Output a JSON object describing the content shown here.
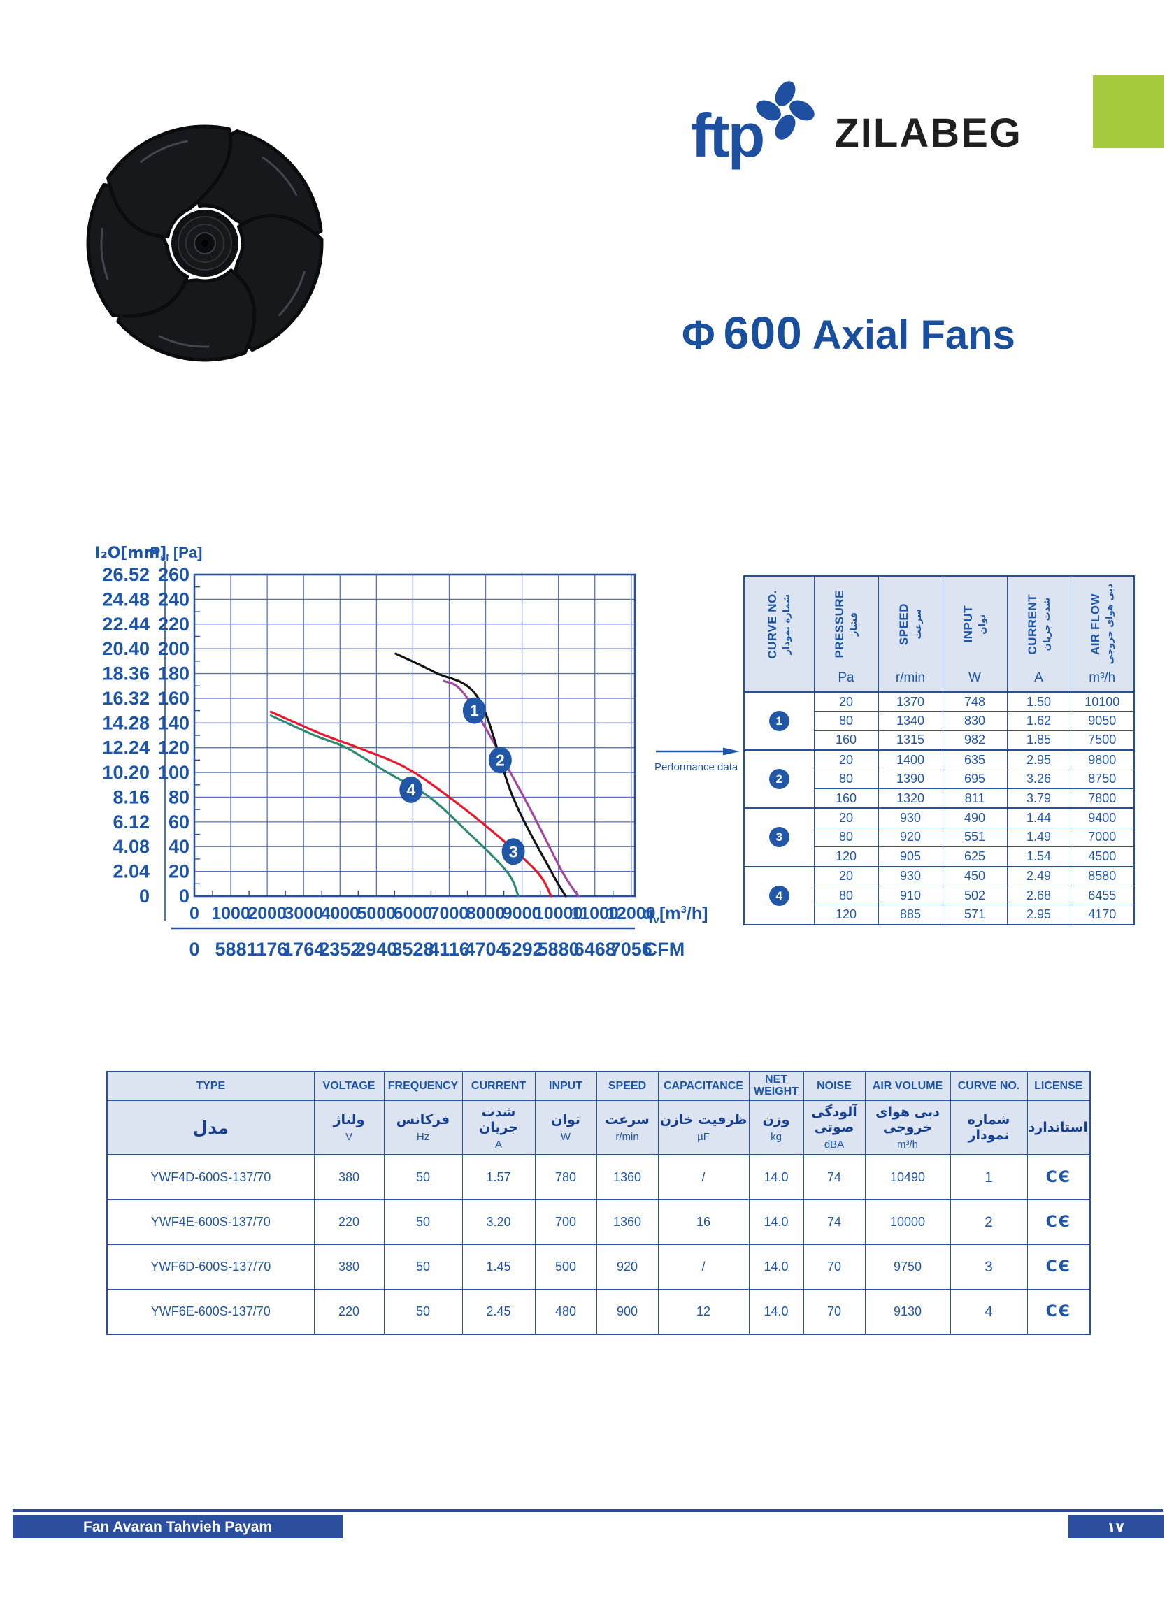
{
  "logo": {
    "ftp": "ftp",
    "brand": "ZILABEG",
    "accent_green": "#a6ca3d",
    "brand_blue": "#1e4fa1"
  },
  "title": {
    "phi": "Φ",
    "diameter": "600",
    "text": "Axial Fans"
  },
  "chart_data": {
    "type": "line",
    "ylabel_left": "H₂O[mm]",
    "ylabel_right_parts": {
      "main": "P",
      "sub": "sf",
      "rest": " [Pa]"
    },
    "xlabel_parts": {
      "main": "q",
      "sub": "v",
      "bracket": "[m",
      "sup": "3",
      "close": "/h]"
    },
    "x2label": "CFM",
    "xlim": [
      0,
      12100
    ],
    "ylim": [
      0,
      260
    ],
    "grid": true,
    "x_ticks": [
      0,
      1000,
      2000,
      3000,
      4000,
      5000,
      6000,
      7000,
      8000,
      9000,
      10000,
      11000,
      12000
    ],
    "x2_ticks": [
      "0",
      "588",
      "1176",
      "1764",
      "2352",
      "2940",
      "3528",
      "4116",
      "4704",
      "5292",
      "5880",
      "6468",
      "7056"
    ],
    "y_ticks_pa": [
      260,
      240,
      220,
      200,
      180,
      160,
      140,
      120,
      100,
      80,
      60,
      40,
      20,
      0
    ],
    "y_ticks_mm": [
      "26.52",
      "24.48",
      "22.44",
      "20.40",
      "18.36",
      "16.32",
      "14.28",
      "12.24",
      "10.20",
      "8.16",
      "6.12",
      "4.08",
      "2.04",
      "0"
    ],
    "series": [
      {
        "name": "1",
        "color": "#a14b9e",
        "points": [
          [
            6860,
            174
          ],
          [
            7500,
            160
          ],
          [
            9050,
            80
          ],
          [
            10100,
            20
          ],
          [
            10550,
            0
          ]
        ],
        "badge": [
          7690,
          150
        ]
      },
      {
        "name": "2",
        "color": "#151515",
        "points": [
          [
            5530,
            196
          ],
          [
            6600,
            181
          ],
          [
            7800,
            160
          ],
          [
            8750,
            80
          ],
          [
            9800,
            20
          ],
          [
            10200,
            0
          ]
        ],
        "badge": [
          8400,
          110
        ]
      },
      {
        "name": "3",
        "color": "#e8192c",
        "points": [
          [
            2100,
            149
          ],
          [
            3500,
            131
          ],
          [
            4500,
            120
          ],
          [
            5800,
            104
          ],
          [
            7000,
            80
          ],
          [
            8200,
            52
          ],
          [
            9400,
            20
          ],
          [
            9800,
            0
          ]
        ],
        "badge": [
          8760,
          36
        ]
      },
      {
        "name": "4",
        "color": "#2e8b74",
        "points": [
          [
            2100,
            146
          ],
          [
            3300,
            130
          ],
          [
            4170,
            120
          ],
          [
            5300,
            100
          ],
          [
            6455,
            80
          ],
          [
            7500,
            52
          ],
          [
            8580,
            20
          ],
          [
            8900,
            0
          ]
        ],
        "badge": [
          5950,
          86
        ]
      }
    ],
    "annotation": "Performance data"
  },
  "performance_table": {
    "headers": [
      {
        "en": "CURVE NO.",
        "fa": "شماره نمودار",
        "unit": ""
      },
      {
        "en": "PRESSURE",
        "fa": "فشار",
        "unit": "Pa"
      },
      {
        "en": "SPEED",
        "fa": "سرعت",
        "unit": "r/min"
      },
      {
        "en": "INPUT",
        "fa": "توان",
        "unit": "W"
      },
      {
        "en": "CURRENT",
        "fa": "شدت جریان",
        "unit": "A"
      },
      {
        "en": "AIR FLOW",
        "fa": "دبی هوای خروجی",
        "unit": "m³/h"
      }
    ],
    "groups": [
      {
        "curve": "1",
        "rows": [
          [
            "20",
            "1370",
            "748",
            "1.50",
            "10100"
          ],
          [
            "80",
            "1340",
            "830",
            "1.62",
            "9050"
          ],
          [
            "160",
            "1315",
            "982",
            "1.85",
            "7500"
          ]
        ]
      },
      {
        "curve": "2",
        "rows": [
          [
            "20",
            "1400",
            "635",
            "2.95",
            "9800"
          ],
          [
            "80",
            "1390",
            "695",
            "3.26",
            "8750"
          ],
          [
            "160",
            "1320",
            "811",
            "3.79",
            "7800"
          ]
        ]
      },
      {
        "curve": "3",
        "rows": [
          [
            "20",
            "930",
            "490",
            "1.44",
            "9400"
          ],
          [
            "80",
            "920",
            "551",
            "1.49",
            "7000"
          ],
          [
            "120",
            "905",
            "625",
            "1.54",
            "4500"
          ]
        ]
      },
      {
        "curve": "4",
        "rows": [
          [
            "20",
            "930",
            "450",
            "2.49",
            "8580"
          ],
          [
            "80",
            "910",
            "502",
            "2.68",
            "6455"
          ],
          [
            "120",
            "885",
            "571",
            "2.95",
            "4170"
          ]
        ]
      }
    ]
  },
  "spec_table": {
    "columns": [
      {
        "en": "TYPE",
        "fa": "مدل",
        "unit": ""
      },
      {
        "en": "VOLTAGE",
        "fa": "ولتاژ",
        "unit": "V"
      },
      {
        "en": "FREQUENCY",
        "fa": "فرکانس",
        "unit": "Hz"
      },
      {
        "en": "CURRENT",
        "fa": "شدت جریان",
        "unit": "A"
      },
      {
        "en": "INPUT",
        "fa": "توان",
        "unit": "W"
      },
      {
        "en": "SPEED",
        "fa": "سرعت",
        "unit": "r/min"
      },
      {
        "en": "CAPACITANCE",
        "fa": "ظرفیت خازن",
        "unit": "µF"
      },
      {
        "en": "NET WEIGHT",
        "fa": "وزن",
        "unit": "kg"
      },
      {
        "en": "NOISE",
        "fa": "آلودگی صوتی",
        "unit": "dBA"
      },
      {
        "en": "AIR VOLUME",
        "fa": "دبی هوای خروجی",
        "unit": "m³/h"
      },
      {
        "en": "CURVE NO.",
        "fa": "شماره نمودار",
        "unit": ""
      },
      {
        "en": "LICENSE",
        "fa": "استاندارد",
        "unit": ""
      }
    ],
    "rows": [
      [
        "YWF4D-600S-137/70",
        "380",
        "50",
        "1.57",
        "780",
        "1360",
        "/",
        "14.0",
        "74",
        "10490",
        "1",
        "CЄ"
      ],
      [
        "YWF4E-600S-137/70",
        "220",
        "50",
        "3.20",
        "700",
        "1360",
        "16",
        "14.0",
        "74",
        "10000",
        "2",
        "CЄ"
      ],
      [
        "YWF6D-600S-137/70",
        "380",
        "50",
        "1.45",
        "500",
        "920",
        "/",
        "14.0",
        "70",
        "9750",
        "3",
        "CЄ"
      ],
      [
        "YWF6E-600S-137/70",
        "220",
        "50",
        "2.45",
        "480",
        "900",
        "12",
        "14.0",
        "70",
        "9130",
        "4",
        "CЄ"
      ]
    ]
  },
  "footer": {
    "company": "Fan Avaran Tahvieh Payam",
    "page_number": "۱۷"
  }
}
